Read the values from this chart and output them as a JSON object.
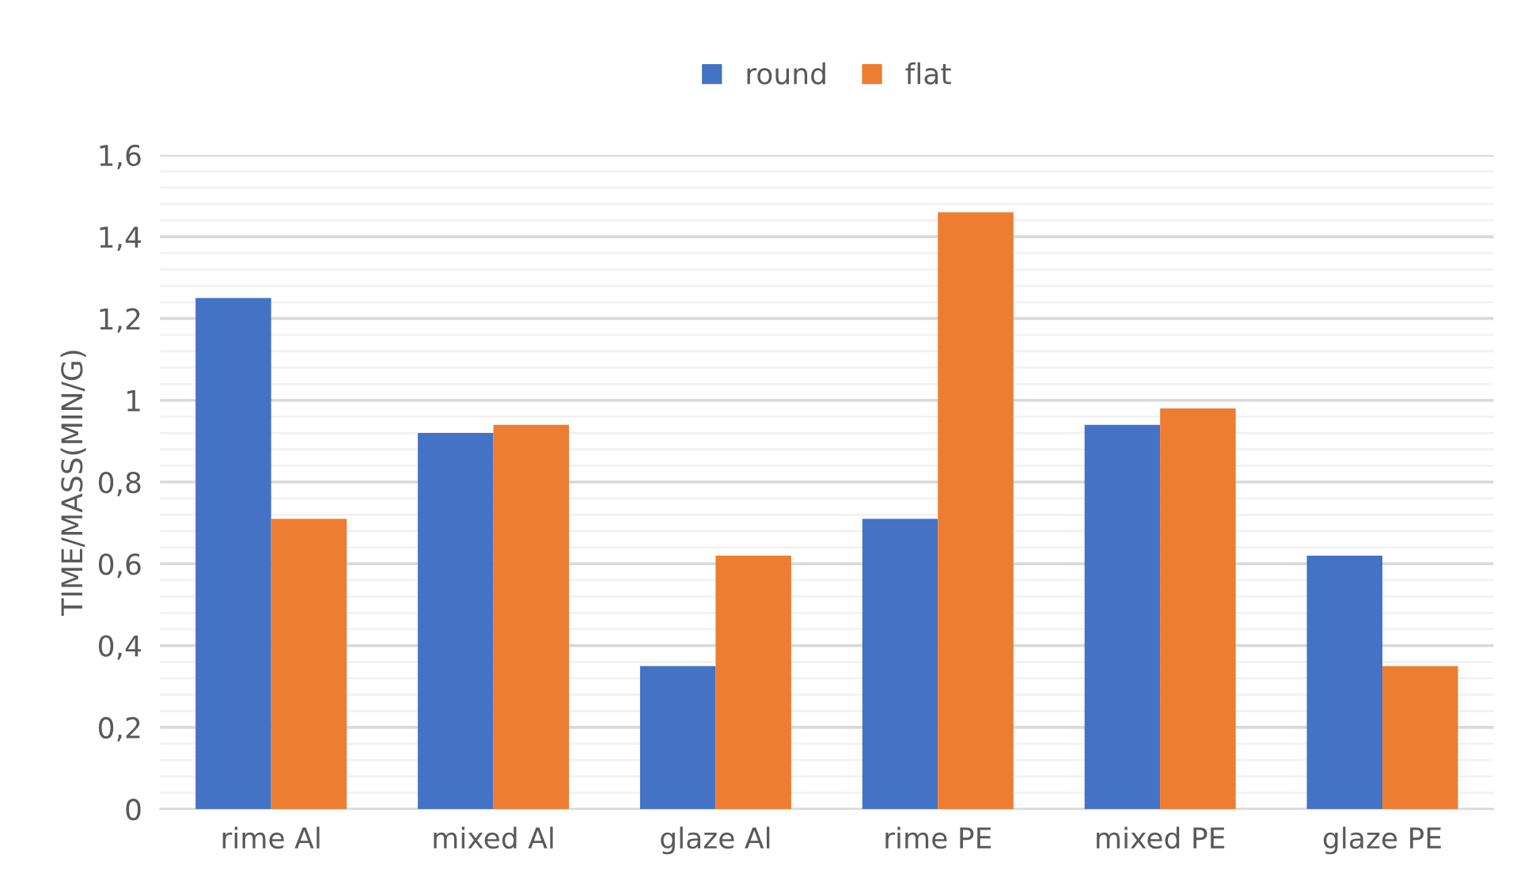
{
  "chart_data": {
    "type": "bar",
    "categories": [
      "rime Al",
      "mixed Al",
      "glaze Al",
      "rime PE",
      "mixed PE",
      "glaze PE"
    ],
    "series": [
      {
        "name": "round",
        "color": "#4472c4",
        "values": [
          1.25,
          0.92,
          0.35,
          0.71,
          0.94,
          0.62
        ]
      },
      {
        "name": "flat",
        "color": "#ed7d31",
        "values": [
          0.71,
          0.94,
          0.62,
          1.46,
          0.98,
          0.35
        ]
      }
    ],
    "ylabel": "TIME/MASS(MIN/G)",
    "ylim": [
      0,
      1.6
    ],
    "yticks": [
      0,
      {
        "value": 0.04,
        "label": null
      },
      {
        "value": 0.08,
        "label": null
      },
      {
        "value": 0.12,
        "label": null
      },
      {
        "value": 0.16,
        "label": null
      },
      {
        "value": 0.2,
        "label": "0,2"
      },
      {
        "value": 0.24,
        "label": null
      },
      {
        "value": 0.28,
        "label": null
      },
      {
        "value": 0.32,
        "label": null
      },
      {
        "value": 0.36,
        "label": null
      },
      {
        "value": 0.4,
        "label": "0,4"
      },
      {
        "value": 0.44,
        "label": null
      },
      {
        "value": 0.48,
        "label": null
      },
      {
        "value": 0.52,
        "label": null
      },
      {
        "value": 0.56,
        "label": null
      },
      {
        "value": 0.6,
        "label": "0,6"
      },
      {
        "value": 0.64,
        "label": null
      },
      {
        "value": 0.68,
        "label": null
      },
      {
        "value": 0.72,
        "label": null
      },
      {
        "value": 0.76,
        "label": null
      },
      {
        "value": 0.8,
        "label": "0,8"
      },
      {
        "value": 0.84,
        "label": null
      },
      {
        "value": 0.88,
        "label": null
      },
      {
        "value": 0.92,
        "label": null
      },
      {
        "value": 0.96,
        "label": null
      },
      1,
      {
        "value": 1.04,
        "label": null
      },
      {
        "value": 1.08,
        "label": null
      },
      {
        "value": 1.12,
        "label": null
      },
      {
        "value": 1.16,
        "label": null
      },
      {
        "value": 1.2,
        "label": "1,2"
      },
      {
        "value": 1.24,
        "label": null
      },
      {
        "value": 1.28,
        "label": null
      },
      {
        "value": 1.32,
        "label": null
      },
      {
        "value": 1.36,
        "label": null
      },
      {
        "value": 1.4,
        "label": "1,4"
      },
      {
        "value": 1.44,
        "label": null
      },
      {
        "value": 1.48,
        "label": null
      },
      {
        "value": 1.52,
        "label": null
      },
      {
        "value": 1.56,
        "label": null
      },
      {
        "value": 1.6,
        "label": "1,6"
      }
    ],
    "grid": "y",
    "legend": "top"
  }
}
